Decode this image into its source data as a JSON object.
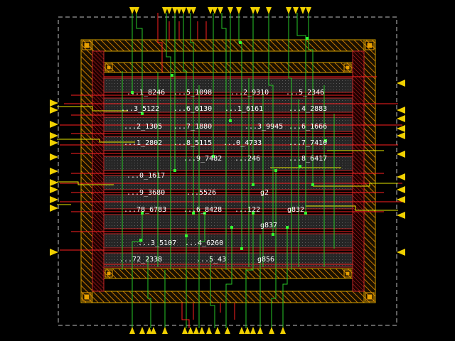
{
  "app": {
    "title": ""
  },
  "colors": {
    "background": "#000000",
    "boundary": "#bfbfbf",
    "ring_outline": "#d4a000",
    "ring_hatch": "#c87800",
    "row_outline": "#c82828",
    "row_fill": "#3a3a3a",
    "metal_vertical": "#28c828",
    "metal_yellow": "#e8e800",
    "metal_red": "#ff2020",
    "pin_yellow": "#f0d000",
    "pin_red": "#ff2000",
    "via": "#30ff30",
    "text": "#ffffff"
  },
  "cells": [
    {
      "label": "...1_8246"
    },
    {
      "label": "...5_1098"
    },
    {
      "label": "...2_9310"
    },
    {
      "label": "...5_2346"
    },
    {
      "label": "...3_5122"
    },
    {
      "label": "...6_6130"
    },
    {
      "label": "...1_6161"
    },
    {
      "label": "...4_2883"
    },
    {
      "label": "...2_1305"
    },
    {
      "label": "...7_1880"
    },
    {
      "label": "...3_9945"
    },
    {
      "label": "...6_1666"
    },
    {
      "label": "...1_2802"
    },
    {
      "label": "...8_5115"
    },
    {
      "label": "...0_4733"
    },
    {
      "label": "...7_7410"
    },
    {
      "label": "...9_7482"
    },
    {
      "label": "...246"
    },
    {
      "label": "...8_6417"
    },
    {
      "label": "...0_1617"
    },
    {
      "label": "...9_3680"
    },
    {
      "label": "...5526"
    },
    {
      "label": "g2"
    },
    {
      "label": "...78_6783"
    },
    {
      "label": "...6_8428"
    },
    {
      "label": "...122"
    },
    {
      "label": "g832"
    },
    {
      "label": "g837"
    },
    {
      "label": "...3_5107"
    },
    {
      "label": "...4_6260"
    },
    {
      "label": "...72_2338"
    },
    {
      "label": "...5_43"
    },
    {
      "label": "g856"
    }
  ]
}
